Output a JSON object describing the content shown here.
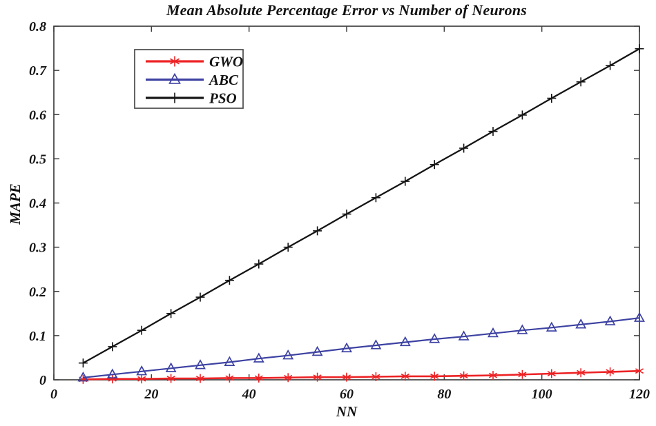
{
  "figure": {
    "background": "#ffffff"
  },
  "chart_data": {
    "type": "line",
    "title": "Mean Absolute Percentage Error vs Number of Neurons",
    "xlabel": "NN",
    "ylabel": "MAPE",
    "xlim": [
      0,
      120
    ],
    "ylim": [
      0,
      0.8
    ],
    "grid": false,
    "box": true,
    "axis_color": "#3f3f3f",
    "text_color": "#141414",
    "x_ticks": {
      "values": [
        0,
        20,
        40,
        60,
        80,
        100,
        120
      ],
      "labels": [
        "0",
        "20",
        "40",
        "60",
        "80",
        "100",
        "120"
      ]
    },
    "y_ticks": {
      "values": [
        0,
        0.1,
        0.2,
        0.3,
        0.4,
        0.5,
        0.6,
        0.7,
        0.8
      ],
      "labels": [
        "0",
        "0.1",
        "0.2",
        "0.3",
        "0.4",
        "0.5",
        "0.6",
        "0.7",
        "0.8"
      ]
    },
    "legend": {
      "position": "upper-left",
      "entries": [
        "GWO",
        "ABC",
        "PSO"
      ]
    },
    "x": [
      6,
      12,
      18,
      24,
      30,
      36,
      42,
      48,
      54,
      60,
      66,
      72,
      78,
      84,
      90,
      96,
      102,
      108,
      114,
      120
    ],
    "series": [
      {
        "name": "GWO",
        "color": "#ed2224",
        "marker": "asterisk",
        "values": [
          0.001,
          0.002,
          0.002,
          0.003,
          0.003,
          0.004,
          0.004,
          0.005,
          0.006,
          0.006,
          0.007,
          0.008,
          0.008,
          0.009,
          0.01,
          0.012,
          0.014,
          0.016,
          0.018,
          0.02
        ]
      },
      {
        "name": "ABC",
        "color": "#3d42a2",
        "marker": "triangle-up",
        "values": [
          0.005,
          0.012,
          0.019,
          0.026,
          0.033,
          0.04,
          0.048,
          0.055,
          0.063,
          0.071,
          0.078,
          0.085,
          0.092,
          0.098,
          0.105,
          0.112,
          0.118,
          0.125,
          0.132,
          0.14
        ]
      },
      {
        "name": "PSO",
        "color": "#141414",
        "marker": "plus",
        "values": [
          0.038,
          0.075,
          0.112,
          0.15,
          0.187,
          0.225,
          0.262,
          0.3,
          0.337,
          0.375,
          0.412,
          0.449,
          0.487,
          0.524,
          0.562,
          0.599,
          0.637,
          0.674,
          0.711,
          0.749
        ]
      }
    ]
  }
}
